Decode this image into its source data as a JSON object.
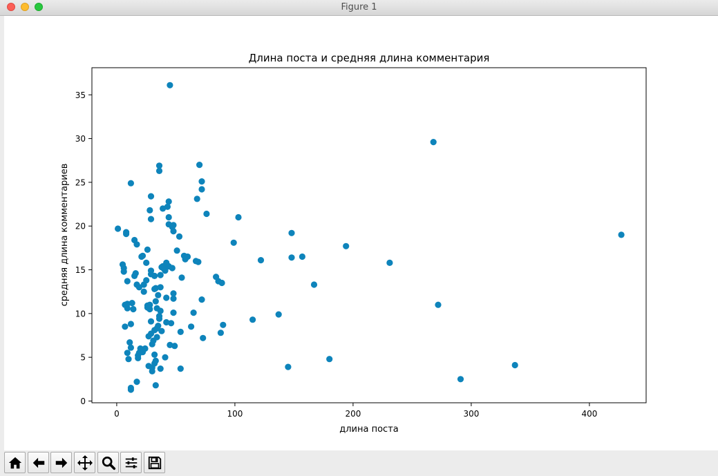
{
  "window": {
    "title": "Figure 1"
  },
  "toolbar": {
    "buttons": [
      {
        "name": "home-icon"
      },
      {
        "name": "back-icon"
      },
      {
        "name": "forward-icon"
      },
      {
        "name": "pan-icon"
      },
      {
        "name": "zoom-icon"
      },
      {
        "name": "configure-subplots-icon"
      },
      {
        "name": "save-icon"
      }
    ]
  },
  "chart_data": {
    "type": "scatter",
    "title": "Длина поста и средняя длина комментария",
    "xlabel": "длина поста",
    "ylabel": "средняя длина комментариев",
    "xlim": [
      -21,
      448
    ],
    "ylim": [
      -0.2,
      38.1
    ],
    "xticks": [
      0,
      100,
      200,
      300,
      400
    ],
    "yticks": [
      0,
      5,
      10,
      15,
      20,
      25,
      30,
      35
    ],
    "grid": false,
    "legend": "none",
    "point_color": "#0e84bb",
    "points": [
      [
        1,
        19.7
      ],
      [
        5,
        15.6
      ],
      [
        6,
        15.2
      ],
      [
        6,
        14.8
      ],
      [
        7,
        11
      ],
      [
        7,
        8.5
      ],
      [
        8,
        19.3
      ],
      [
        8,
        19.1
      ],
      [
        9,
        10.6
      ],
      [
        9,
        11.1
      ],
      [
        9,
        13.7
      ],
      [
        9,
        5.5
      ],
      [
        10,
        4.8
      ],
      [
        11,
        6.7
      ],
      [
        12,
        6.1
      ],
      [
        12,
        8.8
      ],
      [
        12,
        24.9
      ],
      [
        12,
        1.5
      ],
      [
        12,
        1.3
      ],
      [
        13,
        11.2
      ],
      [
        14,
        10.5
      ],
      [
        15,
        18.4
      ],
      [
        15,
        14.3
      ],
      [
        16,
        14.6
      ],
      [
        17,
        17.9
      ],
      [
        17,
        13.3
      ],
      [
        17,
        2.2
      ],
      [
        18,
        4.9
      ],
      [
        18,
        5.2
      ],
      [
        19,
        13
      ],
      [
        19,
        5.5
      ],
      [
        20,
        6
      ],
      [
        21,
        16.5
      ],
      [
        22,
        16.6
      ],
      [
        22,
        5.6
      ],
      [
        23,
        12.5
      ],
      [
        23,
        13.3
      ],
      [
        24,
        6
      ],
      [
        25,
        13.8
      ],
      [
        25,
        15.8
      ],
      [
        26,
        17.3
      ],
      [
        26,
        10.9
      ],
      [
        26,
        10.7
      ],
      [
        27,
        4
      ],
      [
        27,
        7.4
      ],
      [
        28,
        10.5
      ],
      [
        28,
        21.8
      ],
      [
        28,
        11
      ],
      [
        29,
        20.8
      ],
      [
        29,
        23.4
      ],
      [
        29,
        14.9
      ],
      [
        29,
        14.5
      ],
      [
        29,
        9.1
      ],
      [
        29,
        7.7
      ],
      [
        30,
        6.5
      ],
      [
        30,
        3.8
      ],
      [
        30,
        3.4
      ],
      [
        31,
        6.9
      ],
      [
        32,
        12.8
      ],
      [
        32,
        14.3
      ],
      [
        32,
        8.1
      ],
      [
        32,
        5.3
      ],
      [
        32,
        4.3
      ],
      [
        33,
        12.9
      ],
      [
        33,
        11.4
      ],
      [
        33,
        4.6
      ],
      [
        33,
        1.8
      ],
      [
        34,
        10.6
      ],
      [
        34,
        8.3
      ],
      [
        34,
        7.3
      ],
      [
        35,
        12.1
      ],
      [
        35,
        8.6
      ],
      [
        36,
        26.9
      ],
      [
        36,
        26.3
      ],
      [
        36,
        9.7
      ],
      [
        36,
        9.4
      ],
      [
        37,
        14.4
      ],
      [
        37,
        13
      ],
      [
        37,
        10.3
      ],
      [
        37,
        3.7
      ],
      [
        38,
        15.3
      ],
      [
        38,
        8
      ],
      [
        39,
        22
      ],
      [
        39,
        15.4
      ],
      [
        40,
        15.1
      ],
      [
        41,
        14.9
      ],
      [
        41,
        5
      ],
      [
        42,
        15.8
      ],
      [
        42,
        11.8
      ],
      [
        42,
        9
      ],
      [
        43,
        22.2
      ],
      [
        44,
        22.8
      ],
      [
        44,
        21
      ],
      [
        44,
        20.2
      ],
      [
        44,
        15.4
      ],
      [
        45,
        36.1
      ],
      [
        45,
        6.4
      ],
      [
        46,
        8.9
      ],
      [
        47,
        19.9
      ],
      [
        47,
        15.2
      ],
      [
        48,
        20.1
      ],
      [
        48,
        19.4
      ],
      [
        48,
        12.3
      ],
      [
        48,
        11.7
      ],
      [
        48,
        10.1
      ],
      [
        49,
        6.3
      ],
      [
        51,
        17.2
      ],
      [
        53,
        18.8
      ],
      [
        54,
        7.9
      ],
      [
        54,
        3.7
      ],
      [
        55,
        14.1
      ],
      [
        57,
        16.6
      ],
      [
        58,
        16.2
      ],
      [
        60,
        16.5
      ],
      [
        63,
        8.5
      ],
      [
        65,
        10.1
      ],
      [
        67,
        16
      ],
      [
        68,
        23.1
      ],
      [
        69,
        15.9
      ],
      [
        70,
        27
      ],
      [
        72,
        25.1
      ],
      [
        72,
        24.2
      ],
      [
        72,
        11.6
      ],
      [
        73,
        7.2
      ],
      [
        76,
        21.4
      ],
      [
        84,
        14.2
      ],
      [
        86,
        13.7
      ],
      [
        88,
        7.8
      ],
      [
        89,
        13.5
      ],
      [
        90,
        8.7
      ],
      [
        99,
        18.1
      ],
      [
        103,
        21
      ],
      [
        115,
        9.3
      ],
      [
        122,
        16.1
      ],
      [
        137,
        9.9
      ],
      [
        145,
        3.9
      ],
      [
        148,
        19.2
      ],
      [
        148,
        16.4
      ],
      [
        157,
        16.5
      ],
      [
        167,
        13.3
      ],
      [
        180,
        4.8
      ],
      [
        194,
        17.7
      ],
      [
        231,
        15.8
      ],
      [
        268,
        29.6
      ],
      [
        272,
        11
      ],
      [
        291,
        2.5
      ],
      [
        337,
        4.1
      ],
      [
        427,
        19
      ]
    ]
  }
}
